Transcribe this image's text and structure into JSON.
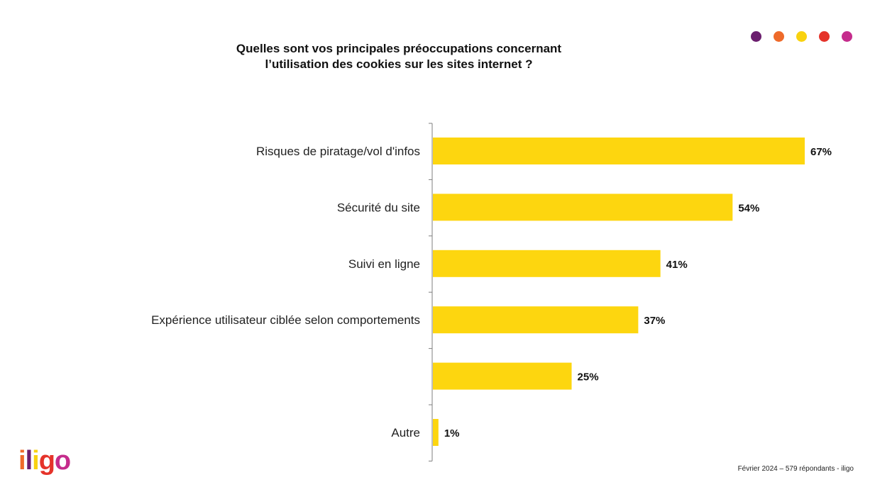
{
  "title": {
    "line1": "Quelles sont vos principales préoccupations concernant",
    "line2": "l’utilisation des cookies sur les sites internet ?"
  },
  "decor_dots": [
    {
      "name": "purple-dot",
      "color": "#6B1E6E"
    },
    {
      "name": "orange-dot",
      "color": "#EE6A2A"
    },
    {
      "name": "yellow-dot",
      "color": "#F9D20F"
    },
    {
      "name": "red-dot",
      "color": "#E5332A"
    },
    {
      "name": "magenta-dot",
      "color": "#C52C8C"
    }
  ],
  "chart_data": {
    "type": "bar",
    "orientation": "horizontal",
    "categories": [
      "Risques de piratage/vol d'infos",
      "Sécurité du site",
      "Suivi en ligne",
      "Expérience utilisateur ciblée selon comportements",
      "",
      "Autre"
    ],
    "values": [
      67,
      54,
      41,
      37,
      25,
      1
    ],
    "value_labels": [
      "67%",
      "54%",
      "41%",
      "37%",
      "25%",
      "1%"
    ],
    "unit": "%",
    "bar_color": "#FDD60F",
    "xlim": [
      0,
      67
    ],
    "grid": false,
    "legend": "none"
  },
  "logo": {
    "text": "iligo"
  },
  "footer": {
    "source": "Février 2024 – 579 répondants - iligo"
  }
}
